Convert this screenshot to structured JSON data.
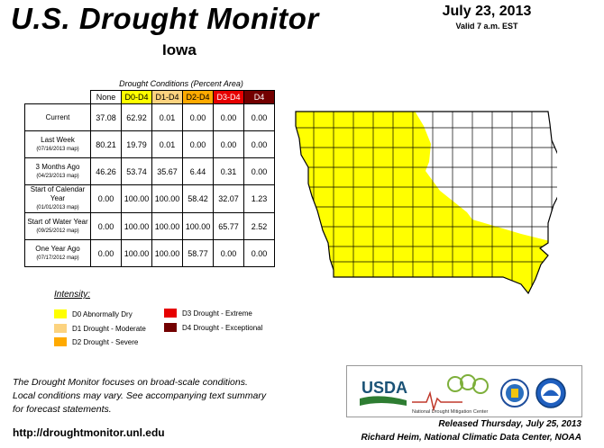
{
  "header": {
    "title": "U.S. Drought Monitor",
    "subtitle": "Iowa",
    "date": "July 23, 2013",
    "valid": "Valid 7 a.m. EST"
  },
  "table": {
    "caption": "Drought Conditions (Percent Area)",
    "columns": [
      "None",
      "D0-D4",
      "D1-D4",
      "D2-D4",
      "D3-D4",
      "D4"
    ],
    "rows": [
      {
        "label": "Current",
        "sub": "",
        "values": [
          "37.08",
          "62.92",
          "0.01",
          "0.00",
          "0.00",
          "0.00"
        ]
      },
      {
        "label": "Last Week",
        "sub": "(07/16/2013 map)",
        "values": [
          "80.21",
          "19.79",
          "0.01",
          "0.00",
          "0.00",
          "0.00"
        ]
      },
      {
        "label": "3 Months Ago",
        "sub": "(04/23/2013 map)",
        "values": [
          "46.26",
          "53.74",
          "35.67",
          "6.44",
          "0.31",
          "0.00"
        ]
      },
      {
        "label": "Start of Calendar Year",
        "sub": "(01/01/2013 map)",
        "values": [
          "0.00",
          "100.00",
          "100.00",
          "58.42",
          "32.07",
          "1.23"
        ]
      },
      {
        "label": "Start of Water Year",
        "sub": "(09/25/2012 map)",
        "values": [
          "0.00",
          "100.00",
          "100.00",
          "100.00",
          "65.77",
          "2.52"
        ]
      },
      {
        "label": "One Year Ago",
        "sub": "(07/17/2012 map)",
        "values": [
          "0.00",
          "100.00",
          "100.00",
          "58.77",
          "0.00",
          "0.00"
        ]
      }
    ]
  },
  "legend": {
    "title": "Intensity:",
    "items": [
      {
        "label": "D0 Abnormally Dry",
        "color": "#ffff00"
      },
      {
        "label": "D1 Drought - Moderate",
        "color": "#fcd37f"
      },
      {
        "label": "D2 Drought - Severe",
        "color": "#ffaa00"
      },
      {
        "label": "D3 Drought - Extreme",
        "color": "#e60000"
      },
      {
        "label": "D4 Drought - Exceptional",
        "color": "#730000"
      }
    ]
  },
  "footer": {
    "line1": "The Drought Monitor focuses on broad-scale conditions.",
    "line2": "Local conditions may vary. See accompanying text summary",
    "line3": "for forecast statements.",
    "url": "http://droughtmonitor.unl.edu",
    "released": "Released Thursday, July 25, 2013",
    "author": "Richard Heim, National Climatic Data Center, NOAA"
  },
  "logos": {
    "usda": "USDA",
    "ndmc": "National Drought Mitigation Center"
  },
  "colors": {
    "d0": "#ffff00",
    "none": "#ffffff"
  }
}
